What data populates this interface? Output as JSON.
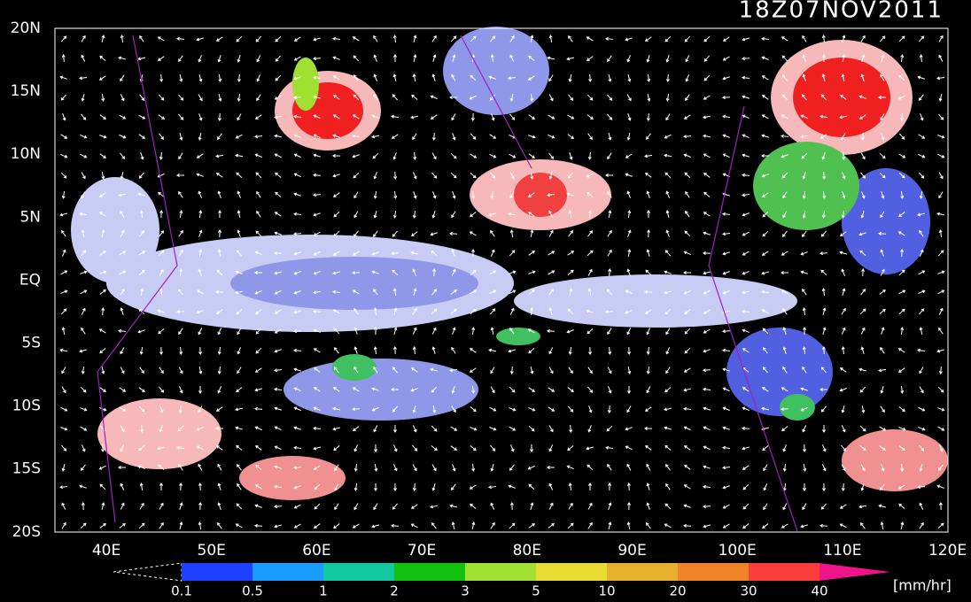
{
  "title": "18Z07NOV2011",
  "lat_labels": [
    "20N",
    "15N",
    "10N",
    "5N",
    "EQ",
    "5S",
    "10S",
    "15S",
    "20S"
  ],
  "lon_labels": [
    "40E",
    "50E",
    "60E",
    "70E",
    "80E",
    "90E",
    "100E",
    "110E",
    "120E"
  ],
  "colorbar": {
    "labels": [
      "0.1",
      "0.5",
      "1",
      "2",
      "3",
      "5",
      "10",
      "20",
      "30",
      "40"
    ],
    "colors": [
      "#2040ff",
      "#1a9bff",
      "#12c8a0",
      "#12c012",
      "#a0e030",
      "#e6dc32",
      "#e6af2d",
      "#f08228",
      "#fa3c3c",
      "#f0148c"
    ],
    "unit": "[mm/hr]"
  }
}
